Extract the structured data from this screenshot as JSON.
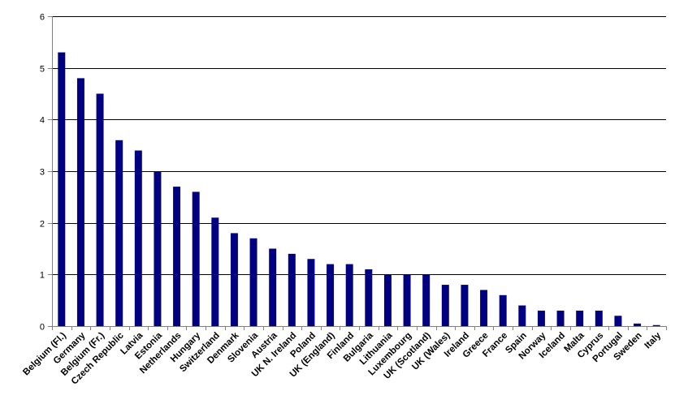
{
  "chart_data": {
    "type": "bar",
    "title": "",
    "xlabel": "",
    "ylabel": "",
    "ylim": [
      0,
      6
    ],
    "y_ticks": [
      "0",
      "1",
      "2",
      "3",
      "4",
      "5",
      "6"
    ],
    "grid": true,
    "legend": "none",
    "colors": {
      "bar": "#000080",
      "grid": "#000000",
      "axis": "#808080"
    },
    "categories": [
      "Belgium (Fl.)",
      "Germany",
      "Belgium (Fr.)",
      "Czech Republic",
      "Latvia",
      "Estonia",
      "Netherlands",
      "Hungary",
      "Switzerland",
      "Denmark",
      "Slovenia",
      "Austria",
      "UK N. Ireland",
      "Poland",
      "UK (England)",
      "Finland",
      "Bulgaria",
      "Lithuania",
      "Luxembourg",
      "UK (Scotland)",
      "UK  (Wales)",
      "Ireland",
      "Greece",
      "France",
      "Spain",
      "Norway",
      "Iceland",
      "Malta",
      "Cyprus",
      "Portugal",
      "Sweden",
      "Italy"
    ],
    "values": [
      5.3,
      4.8,
      4.5,
      3.6,
      3.4,
      3.0,
      2.7,
      2.6,
      2.1,
      1.8,
      1.7,
      1.5,
      1.4,
      1.3,
      1.2,
      1.2,
      1.1,
      1.0,
      1.0,
      1.0,
      0.8,
      0.8,
      0.7,
      0.6,
      0.4,
      0.3,
      0.3,
      0.3,
      0.3,
      0.2,
      0.05,
      0.02
    ]
  }
}
